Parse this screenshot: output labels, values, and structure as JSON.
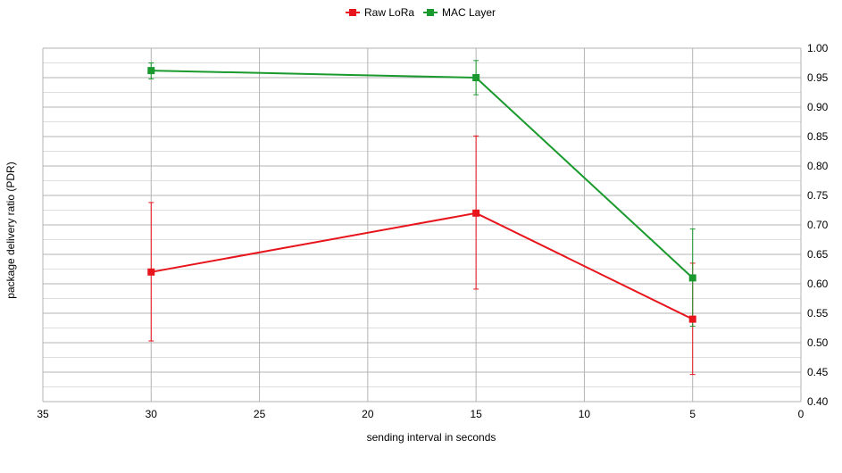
{
  "chart_data": {
    "type": "line",
    "title": "",
    "xlabel": "sending interval in seconds",
    "ylabel": "package delivery ratio (PDR)",
    "xlim": [
      35,
      0
    ],
    "ylim": [
      0.4,
      1.0
    ],
    "x_reversed": true,
    "y_axis_side": "right",
    "x_ticks": [
      "35",
      "30",
      "25",
      "20",
      "15",
      "10",
      "5",
      "0"
    ],
    "y_ticks": [
      "0.40",
      "0.45",
      "0.50",
      "0.55",
      "0.60",
      "0.65",
      "0.70",
      "0.75",
      "0.80",
      "0.85",
      "0.90",
      "0.95",
      "1.00"
    ],
    "grid": true,
    "legend_position": "top-center",
    "series": [
      {
        "name": "Raw LoRa",
        "color": "#e8141c",
        "x": [
          30,
          15,
          5
        ],
        "y": [
          0.62,
          0.72,
          0.54
        ],
        "err_low": [
          0.503,
          0.591,
          0.446
        ],
        "err_high": [
          0.738,
          0.851,
          0.635
        ]
      },
      {
        "name": "MAC Layer",
        "color": "#1a9a2e",
        "x": [
          30,
          15,
          5
        ],
        "y": [
          0.962,
          0.95,
          0.61
        ],
        "err_low": [
          0.948,
          0.921,
          0.528
        ],
        "err_high": [
          0.975,
          0.979,
          0.693
        ]
      }
    ]
  }
}
